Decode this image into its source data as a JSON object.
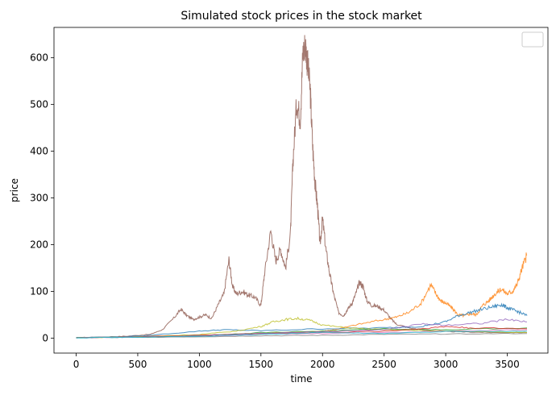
{
  "chart_data": {
    "type": "line",
    "title": "Simulated stock prices in the stock market",
    "xlabel": "time",
    "ylabel": "price",
    "xlim": [
      -180,
      3830
    ],
    "ylim": [
      -32,
      665
    ],
    "xticks": [
      0,
      500,
      1000,
      1500,
      2000,
      2500,
      3000,
      3500
    ],
    "yticks": [
      0,
      100,
      200,
      300,
      400,
      500,
      600
    ],
    "grid": false,
    "legend": "top-right, empty",
    "series": [
      {
        "color": "#8c564b",
        "points": [
          [
            0,
            1
          ],
          [
            200,
            2
          ],
          [
            400,
            4
          ],
          [
            600,
            8
          ],
          [
            700,
            18
          ],
          [
            800,
            45
          ],
          [
            850,
            62
          ],
          [
            900,
            48
          ],
          [
            950,
            40
          ],
          [
            1000,
            45
          ],
          [
            1050,
            50
          ],
          [
            1100,
            42
          ],
          [
            1150,
            70
          ],
          [
            1200,
            95
          ],
          [
            1240,
            168
          ],
          [
            1270,
            110
          ],
          [
            1300,
            95
          ],
          [
            1350,
            100
          ],
          [
            1400,
            92
          ],
          [
            1450,
            88
          ],
          [
            1500,
            70
          ],
          [
            1530,
            140
          ],
          [
            1580,
            230
          ],
          [
            1620,
            165
          ],
          [
            1660,
            190
          ],
          [
            1700,
            150
          ],
          [
            1740,
            225
          ],
          [
            1760,
            380
          ],
          [
            1790,
            505
          ],
          [
            1820,
            470
          ],
          [
            1840,
            610
          ],
          [
            1860,
            630
          ],
          [
            1880,
            585
          ],
          [
            1900,
            530
          ],
          [
            1920,
            410
          ],
          [
            1940,
            330
          ],
          [
            1960,
            280
          ],
          [
            1980,
            200
          ],
          [
            2000,
            255
          ],
          [
            2030,
            185
          ],
          [
            2060,
            135
          ],
          [
            2090,
            95
          ],
          [
            2130,
            55
          ],
          [
            2170,
            48
          ],
          [
            2200,
            60
          ],
          [
            2240,
            75
          ],
          [
            2270,
            95
          ],
          [
            2300,
            120
          ],
          [
            2330,
            110
          ],
          [
            2360,
            80
          ],
          [
            2400,
            70
          ],
          [
            2450,
            68
          ],
          [
            2500,
            60
          ],
          [
            2560,
            40
          ],
          [
            2600,
            30
          ],
          [
            2700,
            22
          ],
          [
            2800,
            18
          ],
          [
            3000,
            14
          ],
          [
            3200,
            13
          ],
          [
            3400,
            12
          ],
          [
            3660,
            12
          ]
        ]
      },
      {
        "color": "#ff7f0e",
        "points": [
          [
            0,
            1
          ],
          [
            500,
            3
          ],
          [
            1000,
            6
          ],
          [
            1500,
            10
          ],
          [
            2000,
            15
          ],
          [
            2100,
            18
          ],
          [
            2300,
            30
          ],
          [
            2500,
            40
          ],
          [
            2600,
            45
          ],
          [
            2700,
            55
          ],
          [
            2800,
            75
          ],
          [
            2880,
            115
          ],
          [
            2920,
            95
          ],
          [
            2960,
            80
          ],
          [
            3000,
            75
          ],
          [
            3050,
            65
          ],
          [
            3100,
            50
          ],
          [
            3150,
            48
          ],
          [
            3200,
            52
          ],
          [
            3250,
            50
          ],
          [
            3300,
            70
          ],
          [
            3350,
            80
          ],
          [
            3400,
            95
          ],
          [
            3450,
            105
          ],
          [
            3500,
            95
          ],
          [
            3540,
            100
          ],
          [
            3580,
            115
          ],
          [
            3620,
            150
          ],
          [
            3660,
            178
          ]
        ]
      },
      {
        "color": "#1f77b4",
        "points": [
          [
            0,
            1
          ],
          [
            500,
            4
          ],
          [
            1000,
            15
          ],
          [
            1200,
            18
          ],
          [
            1500,
            16
          ],
          [
            2000,
            20
          ],
          [
            2500,
            22
          ],
          [
            2800,
            25
          ],
          [
            3000,
            35
          ],
          [
            3100,
            48
          ],
          [
            3200,
            55
          ],
          [
            3300,
            62
          ],
          [
            3400,
            68
          ],
          [
            3450,
            72
          ],
          [
            3500,
            65
          ],
          [
            3550,
            60
          ],
          [
            3600,
            55
          ],
          [
            3660,
            48
          ]
        ]
      },
      {
        "color": "#bcbd22",
        "points": [
          [
            0,
            1
          ],
          [
            500,
            3
          ],
          [
            1000,
            8
          ],
          [
            1300,
            15
          ],
          [
            1500,
            25
          ],
          [
            1600,
            35
          ],
          [
            1700,
            40
          ],
          [
            1800,
            42
          ],
          [
            1900,
            38
          ],
          [
            2000,
            28
          ],
          [
            2200,
            22
          ],
          [
            2500,
            18
          ],
          [
            3000,
            15
          ],
          [
            3660,
            12
          ]
        ]
      },
      {
        "color": "#2ca02c",
        "points": [
          [
            0,
            1
          ],
          [
            500,
            2
          ],
          [
            1000,
            5
          ],
          [
            1500,
            12
          ],
          [
            2000,
            15
          ],
          [
            2500,
            20
          ],
          [
            3000,
            18
          ],
          [
            3660,
            22
          ]
        ]
      },
      {
        "color": "#d62728",
        "points": [
          [
            0,
            1
          ],
          [
            500,
            3
          ],
          [
            1000,
            6
          ],
          [
            1500,
            10
          ],
          [
            2000,
            12
          ],
          [
            2500,
            15
          ],
          [
            2800,
            20
          ],
          [
            3000,
            25
          ],
          [
            3200,
            22
          ],
          [
            3660,
            20
          ]
        ]
      },
      {
        "color": "#9467bd",
        "points": [
          [
            0,
            1
          ],
          [
            500,
            2
          ],
          [
            1000,
            5
          ],
          [
            1500,
            10
          ],
          [
            2000,
            14
          ],
          [
            2500,
            18
          ],
          [
            2800,
            30
          ],
          [
            3000,
            28
          ],
          [
            3300,
            32
          ],
          [
            3500,
            40
          ],
          [
            3660,
            35
          ]
        ]
      },
      {
        "color": "#e377c2",
        "points": [
          [
            0,
            1
          ],
          [
            500,
            2
          ],
          [
            1000,
            4
          ],
          [
            1500,
            8
          ],
          [
            2000,
            10
          ],
          [
            2500,
            12
          ],
          [
            3000,
            15
          ],
          [
            3660,
            18
          ]
        ]
      },
      {
        "color": "#7f7f7f",
        "points": [
          [
            0,
            1
          ],
          [
            500,
            2
          ],
          [
            1000,
            3
          ],
          [
            1500,
            5
          ],
          [
            2000,
            6
          ],
          [
            2500,
            8
          ],
          [
            3000,
            9
          ],
          [
            3660,
            10
          ]
        ]
      },
      {
        "color": "#17becf",
        "points": [
          [
            0,
            1
          ],
          [
            500,
            2
          ],
          [
            1000,
            4
          ],
          [
            1500,
            8
          ],
          [
            2000,
            12
          ],
          [
            2500,
            10
          ],
          [
            3000,
            14
          ],
          [
            3660,
            15
          ]
        ]
      }
    ]
  }
}
